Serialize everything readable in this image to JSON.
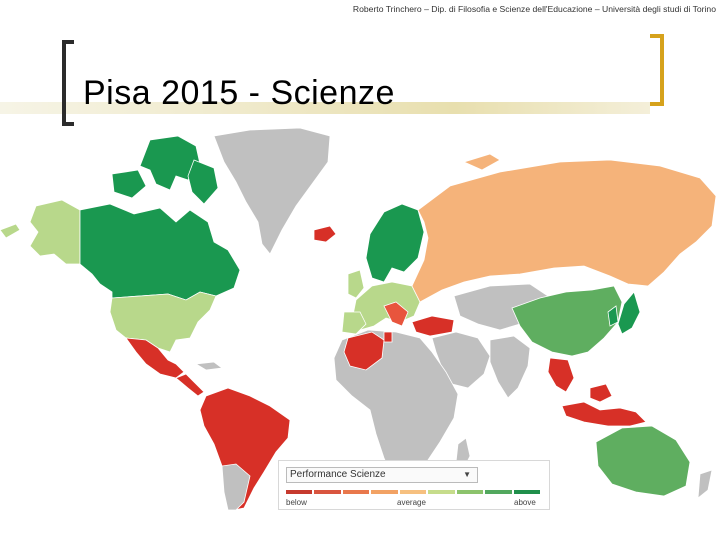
{
  "header": {
    "credit": "Roberto Trinchero – Dip. di Filosofia e Scienze dell'Educazione – Università degli studi di Torino"
  },
  "slide": {
    "title": "Pisa 2015 - Scienze"
  },
  "colors": {
    "below_strong": "#d73027",
    "below": "#e8553d",
    "average_low": "#f4a96b",
    "average": "#f5b37a",
    "above_low": "#b8d88b",
    "above": "#5fae60",
    "above_strong": "#1a9850",
    "no_data": "#c0c0c0",
    "ocean": "#ffffff"
  },
  "legend": {
    "selector_label": "Performance   Scienze",
    "scale_labels": {
      "low": "below",
      "mid": "average",
      "high": "above"
    },
    "scale_colors": [
      "#c63a2e",
      "#d9553f",
      "#e9784c",
      "#f2a264",
      "#f6c07f",
      "#c6dc8b",
      "#8cc36c",
      "#52a85e",
      "#1f8f4b"
    ]
  },
  "map": {
    "regions": [
      {
        "name": "canada",
        "category": "above_strong"
      },
      {
        "name": "greenland",
        "category": "no_data"
      },
      {
        "name": "alaska",
        "category": "above_low"
      },
      {
        "name": "usa",
        "category": "above_low"
      },
      {
        "name": "mexico",
        "category": "below_strong"
      },
      {
        "name": "central-america",
        "category": "below_strong"
      },
      {
        "name": "south-america",
        "category": "below_strong"
      },
      {
        "name": "russia",
        "category": "average"
      },
      {
        "name": "china",
        "category": "above"
      },
      {
        "name": "japan",
        "category": "above_strong"
      },
      {
        "name": "australia",
        "category": "above"
      },
      {
        "name": "africa",
        "category": "no_data"
      },
      {
        "name": "algeria",
        "category": "below_strong"
      },
      {
        "name": "europe",
        "category": "above_low"
      },
      {
        "name": "scandinavia",
        "category": "above_strong"
      },
      {
        "name": "iceland",
        "category": "below_strong"
      },
      {
        "name": "turkey",
        "category": "below_strong"
      },
      {
        "name": "middle-east",
        "category": "no_data"
      },
      {
        "name": "india",
        "category": "no_data"
      },
      {
        "name": "indonesia",
        "category": "below_strong"
      },
      {
        "name": "southeast-asia",
        "category": "below_strong"
      }
    ]
  }
}
